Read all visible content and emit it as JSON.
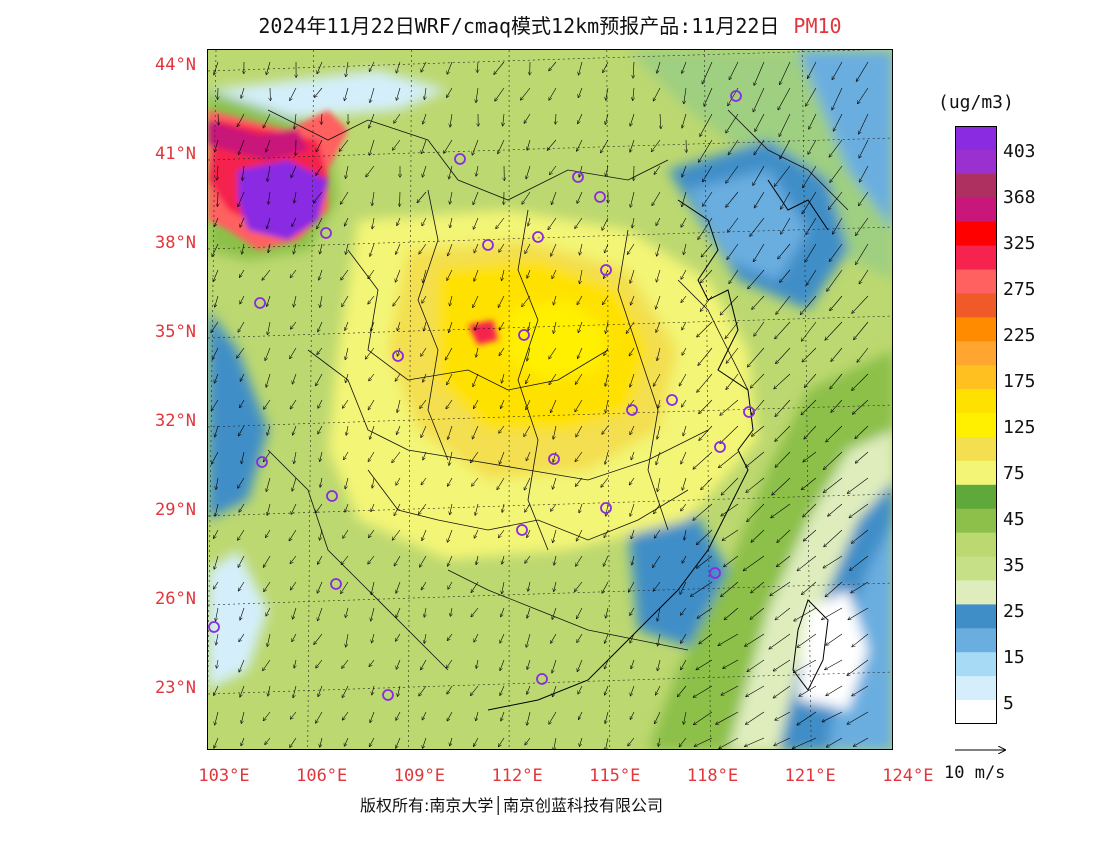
{
  "title": {
    "main": "2024年11月22日WRF/cmaq模式12km预报产品:11月22日",
    "pollutant": "PM10"
  },
  "map": {
    "lat_labels": [
      "44°N",
      "41°N",
      "38°N",
      "35°N",
      "32°N",
      "29°N",
      "26°N",
      "23°N"
    ],
    "lon_labels": [
      "103°E",
      "106°E",
      "109°E",
      "112°E",
      "115°E",
      "118°E",
      "121°E",
      "124°E"
    ],
    "station_marker_color": "#8a2be2"
  },
  "colorbar": {
    "unit": "(ug/m3)",
    "labels": [
      "403",
      "368",
      "325",
      "275",
      "225",
      "175",
      "125",
      "75",
      "45",
      "35",
      "25",
      "15",
      "5"
    ],
    "colors": [
      "#8a2be2",
      "#9b30d0",
      "#ad3060",
      "#c8167a",
      "#ff0000",
      "#f5234e",
      "#ff6060",
      "#f05a28",
      "#ff8c00",
      "#ffa530",
      "#ffc020",
      "#ffe100",
      "#fff000",
      "#f3df50",
      "#f3f576",
      "#5fa83a",
      "#8cc04a",
      "#bcd870",
      "#c6e088",
      "#dfedbd",
      "#3f8ec8",
      "#6aaee0",
      "#a6daf5",
      "#d4effb",
      "#ffffff"
    ]
  },
  "wind": {
    "reference_label": "10 m/s"
  },
  "copyright": "版权所有:南京大学│南京创蓝科技有限公司"
}
